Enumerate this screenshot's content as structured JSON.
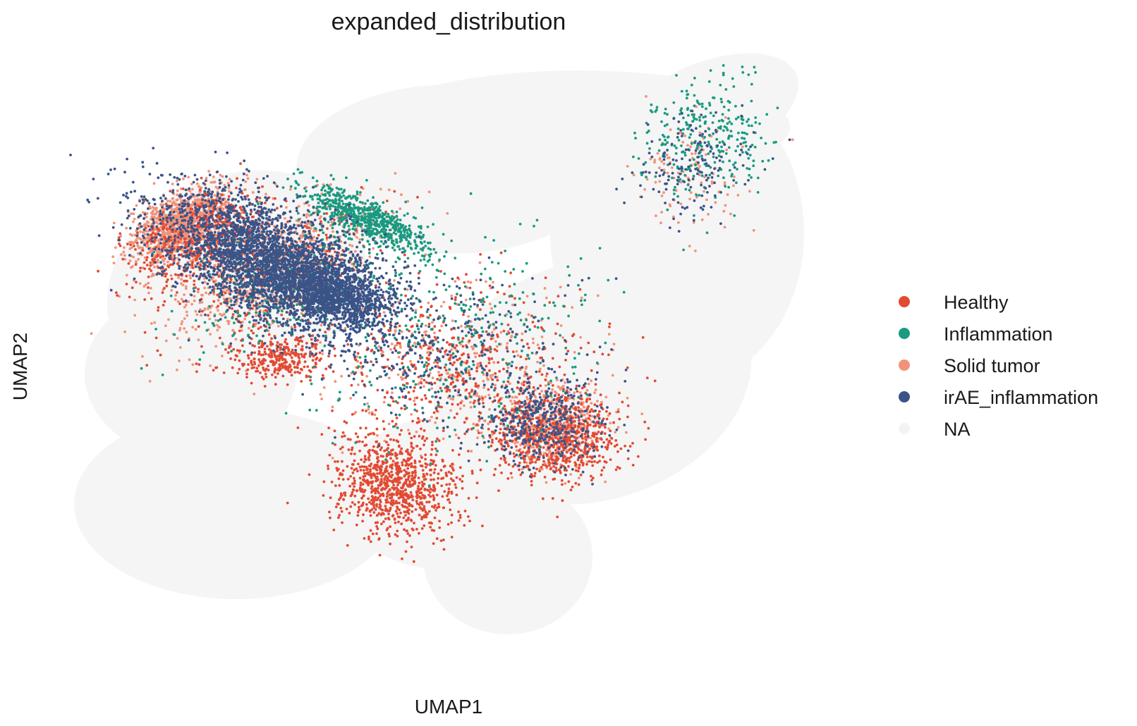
{
  "chart_data": {
    "type": "scatter",
    "title": "expanded_distribution",
    "xlabel": "UMAP1",
    "ylabel": "UMAP2",
    "xlim": [
      0,
      100
    ],
    "ylim": [
      0,
      100
    ],
    "grid": false,
    "legend_position": "right",
    "series": [
      {
        "name": "Healthy",
        "color": "#e24a33",
        "approx_points": 3400
      },
      {
        "name": "Inflammation",
        "color": "#1a9a80",
        "approx_points": 1800
      },
      {
        "name": "Solid tumor",
        "color": "#f0937a",
        "approx_points": 3000
      },
      {
        "name": "irAE_inflammation",
        "color": "#3b5488",
        "approx_points": 5200
      },
      {
        "name": "NA",
        "color": "#f3f3f3",
        "approx_points": 0
      }
    ]
  }
}
